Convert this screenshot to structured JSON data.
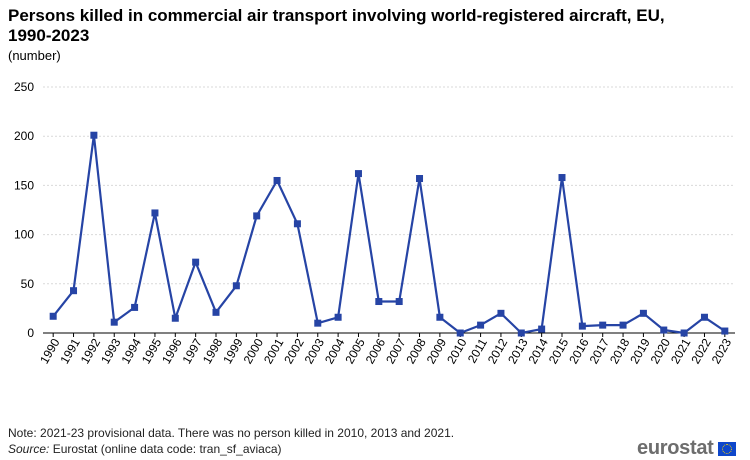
{
  "title": "Persons killed in commercial air transport involving world-registered aircraft, EU, 1990-2023",
  "subtitle": "(number)",
  "footer": {
    "note": "Note: 2021-23 provisional data. There was no person killed in 2010, 2013 and 2021.",
    "source_label": "Source:",
    "source_text": " Eurostat (online data code: tran_sf_aviaca)"
  },
  "logo": {
    "text": "eurostat"
  },
  "colors": {
    "series": "#2644a5",
    "grid": "#d9d9d9",
    "axis": "#000000"
  },
  "chart_data": {
    "type": "line",
    "title": "Persons killed in commercial air transport involving world-registered aircraft, EU, 1990-2023",
    "subtitle": "(number)",
    "xlabel": "",
    "ylabel": "",
    "ylim": [
      0,
      250
    ],
    "yticks": [
      0,
      50,
      100,
      150,
      200,
      250
    ],
    "grid": true,
    "categories": [
      "1990",
      "1991",
      "1992",
      "1993",
      "1994",
      "1995",
      "1996",
      "1997",
      "1998",
      "1999",
      "2000",
      "2001",
      "2002",
      "2003",
      "2004",
      "2005",
      "2006",
      "2007",
      "2008",
      "2009",
      "2010",
      "2011",
      "2012",
      "2013",
      "2014",
      "2015",
      "2016",
      "2017",
      "2018",
      "2019",
      "2020",
      "2021",
      "2022",
      "2023"
    ],
    "series": [
      {
        "values": [
          17,
          43,
          201,
          11,
          26,
          122,
          15,
          72,
          21,
          48,
          119,
          155,
          111,
          10,
          16,
          162,
          32,
          32,
          157,
          16,
          0,
          8,
          20,
          0,
          4,
          158,
          7,
          8,
          8,
          20,
          3,
          0,
          16,
          2
        ]
      }
    ]
  }
}
